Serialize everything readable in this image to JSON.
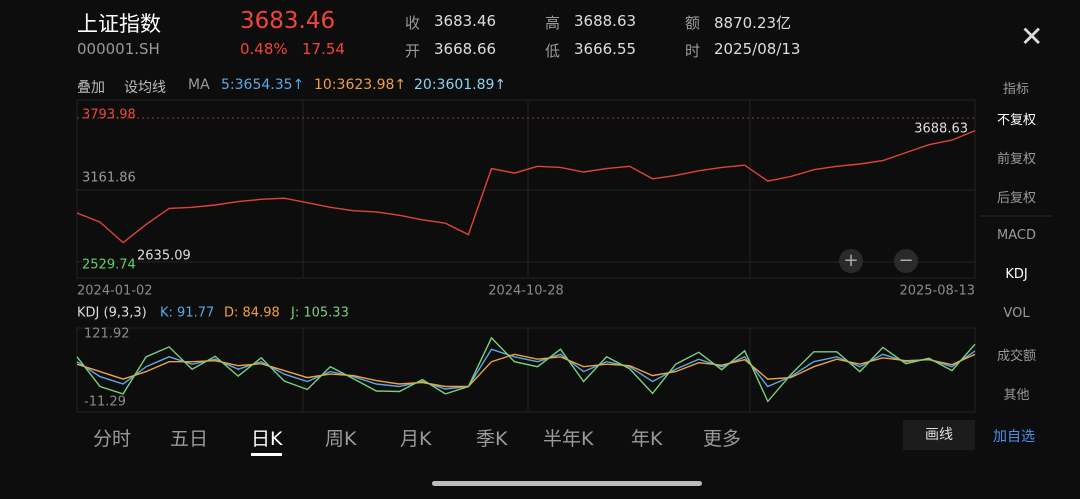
{
  "header": {
    "name": "上证指数",
    "code": "000001.SH",
    "price": "3683.46",
    "change_pct": "0.48%",
    "change": "17.54",
    "stats": [
      {
        "label": "收",
        "value": "3683.46"
      },
      {
        "label": "开",
        "value": "3668.66"
      },
      {
        "label": "高",
        "value": "3688.63"
      },
      {
        "label": "低",
        "value": "3666.55"
      },
      {
        "label": "额",
        "value": "8870.23亿"
      },
      {
        "label": "时",
        "value": "2025/08/13"
      }
    ]
  },
  "indicator_bar": {
    "overlay": "叠加",
    "set_ma": "设均线",
    "ma_label": "MA",
    "ma": [
      {
        "text": "5:3654.35↑",
        "color": "#5aa9e6"
      },
      {
        "text": "10:3623.98↑",
        "color": "#f0a040"
      },
      {
        "text": "20:3601.89↑",
        "color": "#8fd3f0"
      }
    ],
    "right": "指标"
  },
  "chart_data": [
    {
      "type": "line",
      "color": "#e0433a",
      "values": [
        2960,
        2880,
        2700,
        2860,
        3000,
        3010,
        3030,
        3060,
        3080,
        3090,
        3050,
        3010,
        2980,
        2970,
        2940,
        2900,
        2870,
        2770,
        3350,
        3310,
        3370,
        3360,
        3320,
        3350,
        3370,
        3260,
        3290,
        3330,
        3360,
        3380,
        3240,
        3280,
        3340,
        3370,
        3390,
        3420,
        3490,
        3560,
        3600,
        3683.46
      ],
      "ylim": [
        2529.74,
        3793.98
      ],
      "yticks": [
        3793.98,
        3161.86,
        2529.74
      ],
      "x_labels": [
        "2024-01-02",
        "2024-10-28",
        "2025-08-13"
      ],
      "max_marker": 3688.63,
      "min_marker": 2635.09
    },
    {
      "type": "line",
      "title": "KDJ (9,3,3)",
      "ylim": [
        -11.29,
        121.92
      ],
      "yticks": [
        121.92,
        -11.29
      ],
      "series": [
        {
          "name": "K: 91.77",
          "color": "#5aa9e6",
          "values": [
            70,
            40,
            25,
            60,
            80,
            65,
            75,
            55,
            70,
            45,
            30,
            50,
            40,
            25,
            20,
            30,
            15,
            20,
            95,
            80,
            70,
            85,
            50,
            70,
            60,
            30,
            55,
            75,
            60,
            80,
            20,
            40,
            70,
            80,
            60,
            85,
            70,
            75,
            60,
            91.77
          ]
        },
        {
          "name": "D: 84.98",
          "color": "#f0a040",
          "values": [
            65,
            50,
            35,
            50,
            70,
            70,
            72,
            62,
            66,
            52,
            38,
            45,
            42,
            32,
            25,
            28,
            20,
            20,
            70,
            85,
            75,
            80,
            60,
            65,
            62,
            42,
            50,
            68,
            63,
            74,
            35,
            38,
            60,
            75,
            65,
            78,
            72,
            74,
            64,
            84.98
          ]
        },
        {
          "name": "J: 105.33",
          "color": "#7ad07a",
          "values": [
            80,
            20,
            5,
            80,
            100,
            55,
            81,
            41,
            78,
            31,
            14,
            60,
            36,
            11,
            10,
            34,
            5,
            20,
            118,
            70,
            60,
            95,
            30,
            80,
            56,
            6,
            65,
            89,
            54,
            92,
            -10,
            44,
            90,
            90,
            50,
            99,
            66,
            77,
            52,
            105.33
          ]
        }
      ]
    }
  ],
  "sidebar": {
    "items": [
      "不复权",
      "前复权",
      "后复权",
      "MACD",
      "KDJ",
      "VOL",
      "成交额",
      "其他"
    ],
    "active": [
      0,
      4
    ]
  },
  "tabs": {
    "items": [
      "分时",
      "五日",
      "日K",
      "周K",
      "月K",
      "季K",
      "半年K",
      "年K",
      "更多"
    ],
    "selected": 2
  },
  "buttons": [
    "画线",
    "加自选"
  ]
}
